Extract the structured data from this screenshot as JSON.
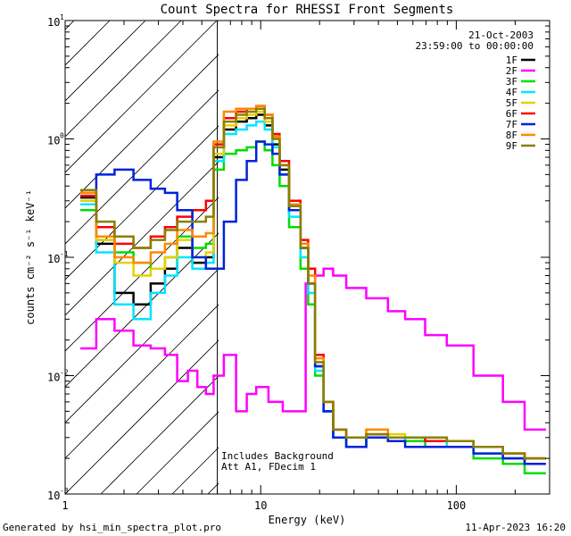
{
  "footer": {
    "left": "Generated by hsi_min_spectra_plot.pro",
    "right": "11-Apr-2023 16:20"
  },
  "chart_data": {
    "type": "line",
    "title": "Count Spectra for RHESSI Front Segments",
    "xlabel": "Energy (keV)",
    "ylabel": "counts cm⁻² s⁻¹ keV⁻¹",
    "xscale": "log",
    "yscale": "log",
    "xlim": [
      1,
      300
    ],
    "ylim": [
      0.001,
      10
    ],
    "x_tick_labels": [
      {
        "value": 1,
        "label": "1"
      },
      {
        "value": 10,
        "label": "10"
      },
      {
        "value": 100,
        "label": "100"
      }
    ],
    "y_tick_labels": [
      {
        "value": 10,
        "label": "10",
        "exp": "1"
      },
      {
        "value": 1,
        "label": "10",
        "exp": "0"
      },
      {
        "value": 0.1,
        "label": "10",
        "exp": "-1"
      },
      {
        "value": 0.01,
        "label": "10",
        "exp": "-2"
      },
      {
        "value": 0.001,
        "label": "10",
        "exp": "-3"
      }
    ],
    "date": "21-Oct-2003",
    "time_range": "23:59:00 to 00:00:00",
    "shaded_region_below_keV": 6,
    "annotations": [
      "Includes Background",
      "Att A1, FDecim 1"
    ],
    "legend_position": "top-right",
    "series": [
      {
        "name": "1F",
        "color": "#000000",
        "x": [
          1.3,
          1.6,
          2.0,
          2.5,
          3.0,
          3.5,
          4.0,
          5.0,
          5.5,
          6.0,
          7.0,
          8.0,
          9.0,
          10.0,
          11.0,
          12.0,
          13.0,
          15.0,
          17.0,
          18.0,
          20.0,
          22.0,
          25.0,
          30.0,
          40.0,
          50.0,
          60.0,
          80.0,
          100.0,
          150.0,
          200.0,
          250.0
        ],
        "y": [
          0.32,
          0.13,
          0.05,
          0.04,
          0.06,
          0.08,
          0.12,
          0.09,
          0.1,
          0.7,
          1.2,
          1.4,
          1.5,
          1.6,
          1.3,
          0.9,
          0.55,
          0.25,
          0.12,
          0.06,
          0.012,
          0.005,
          0.003,
          0.0025,
          0.003,
          0.003,
          0.003,
          0.003,
          0.0028,
          0.0025,
          0.002,
          0.0018
        ]
      },
      {
        "name": "2F",
        "color": "#ff00ff",
        "x": [
          1.3,
          1.6,
          2.0,
          2.5,
          3.0,
          3.5,
          4.0,
          4.5,
          5.0,
          5.5,
          6.0,
          7.0,
          8.0,
          9.0,
          10.0,
          12.0,
          14.0,
          16.0,
          18.0,
          20.0,
          22.0,
          25.0,
          30.0,
          40.0,
          50.0,
          60.0,
          80.0,
          100.0,
          150.0,
          200.0,
          250.0
        ],
        "y": [
          0.017,
          0.03,
          0.024,
          0.018,
          0.017,
          0.015,
          0.009,
          0.011,
          0.008,
          0.007,
          0.01,
          0.015,
          0.005,
          0.007,
          0.008,
          0.006,
          0.005,
          0.005,
          0.06,
          0.07,
          0.08,
          0.07,
          0.055,
          0.045,
          0.035,
          0.03,
          0.022,
          0.018,
          0.01,
          0.006,
          0.0035
        ]
      },
      {
        "name": "3F",
        "color": "#00dd00",
        "x": [
          1.3,
          1.6,
          2.0,
          2.5,
          3.0,
          3.5,
          4.0,
          5.0,
          5.5,
          6.0,
          7.0,
          8.0,
          9.0,
          10.0,
          11.0,
          12.0,
          13.0,
          15.0,
          17.0,
          18.0,
          20.0,
          22.0,
          25.0,
          30.0,
          40.0,
          50.0,
          60.0,
          80.0,
          100.0,
          150.0,
          200.0,
          250.0
        ],
        "y": [
          0.25,
          0.14,
          0.11,
          0.09,
          0.08,
          0.1,
          0.15,
          0.12,
          0.13,
          0.55,
          0.75,
          0.8,
          0.85,
          0.95,
          0.8,
          0.6,
          0.4,
          0.18,
          0.08,
          0.04,
          0.01,
          0.005,
          0.003,
          0.0025,
          0.003,
          0.003,
          0.0028,
          0.0025,
          0.0025,
          0.002,
          0.0018,
          0.0015
        ]
      },
      {
        "name": "4F",
        "color": "#00e5ff",
        "x": [
          1.3,
          1.6,
          2.0,
          2.5,
          3.0,
          3.5,
          4.0,
          5.0,
          5.5,
          6.0,
          7.0,
          8.0,
          9.0,
          10.0,
          11.0,
          12.0,
          13.0,
          15.0,
          17.0,
          18.0,
          20.0,
          22.0,
          25.0,
          30.0,
          40.0,
          50.0,
          60.0,
          80.0,
          100.0,
          150.0,
          200.0,
          250.0
        ],
        "y": [
          0.28,
          0.11,
          0.04,
          0.03,
          0.05,
          0.07,
          0.1,
          0.08,
          0.09,
          0.65,
          1.1,
          1.2,
          1.3,
          1.4,
          1.2,
          0.85,
          0.5,
          0.22,
          0.1,
          0.05,
          0.011,
          0.005,
          0.003,
          0.0025,
          0.003,
          0.0028,
          0.003,
          0.0028,
          0.0025,
          0.0022,
          0.002,
          0.0018
        ]
      },
      {
        "name": "5F",
        "color": "#e6d000",
        "x": [
          1.3,
          1.6,
          2.0,
          2.5,
          3.0,
          3.5,
          4.0,
          5.0,
          5.5,
          6.0,
          7.0,
          8.0,
          9.0,
          10.0,
          11.0,
          12.0,
          13.0,
          15.0,
          17.0,
          18.0,
          20.0,
          22.0,
          25.0,
          30.0,
          40.0,
          50.0,
          60.0,
          80.0,
          100.0,
          150.0,
          200.0,
          250.0
        ],
        "y": [
          0.3,
          0.14,
          0.09,
          0.07,
          0.08,
          0.1,
          0.14,
          0.1,
          0.11,
          0.75,
          1.3,
          1.5,
          1.6,
          1.7,
          1.4,
          1.0,
          0.6,
          0.28,
          0.13,
          0.07,
          0.013,
          0.006,
          0.0035,
          0.003,
          0.0035,
          0.0032,
          0.003,
          0.003,
          0.0028,
          0.0025,
          0.0022,
          0.002
        ]
      },
      {
        "name": "6F",
        "color": "#ff0000",
        "x": [
          1.3,
          1.6,
          2.0,
          2.5,
          3.0,
          3.5,
          4.0,
          5.0,
          5.5,
          6.0,
          7.0,
          8.0,
          9.0,
          10.0,
          11.0,
          12.0,
          13.0,
          15.0,
          17.0,
          18.0,
          20.0,
          22.0,
          25.0,
          30.0,
          40.0,
          50.0,
          60.0,
          80.0,
          100.0,
          150.0,
          200.0,
          250.0
        ],
        "y": [
          0.33,
          0.18,
          0.13,
          0.12,
          0.15,
          0.18,
          0.22,
          0.25,
          0.3,
          0.9,
          1.5,
          1.7,
          1.8,
          1.9,
          1.6,
          1.1,
          0.65,
          0.3,
          0.14,
          0.08,
          0.015,
          0.006,
          0.0035,
          0.003,
          0.0032,
          0.003,
          0.003,
          0.0028,
          0.0028,
          0.0025,
          0.0022,
          0.002
        ]
      },
      {
        "name": "7F",
        "color": "#0022dd",
        "x": [
          1.3,
          1.6,
          2.0,
          2.5,
          3.0,
          3.5,
          4.0,
          5.0,
          5.5,
          6.0,
          7.0,
          8.0,
          9.0,
          10.0,
          11.0,
          12.0,
          13.0,
          15.0,
          17.0,
          18.0,
          20.0,
          22.0,
          25.0,
          30.0,
          40.0,
          50.0,
          60.0,
          80.0,
          100.0,
          150.0,
          200.0,
          250.0
        ],
        "y": [
          0.35,
          0.5,
          0.55,
          0.45,
          0.38,
          0.35,
          0.25,
          0.1,
          0.08,
          0.08,
          0.2,
          0.45,
          0.65,
          0.95,
          0.9,
          0.75,
          0.5,
          0.25,
          0.12,
          0.06,
          0.012,
          0.005,
          0.003,
          0.0025,
          0.003,
          0.0028,
          0.0025,
          0.0025,
          0.0025,
          0.0022,
          0.002,
          0.0018
        ]
      },
      {
        "name": "8F",
        "color": "#ff8800",
        "x": [
          1.3,
          1.6,
          2.0,
          2.5,
          3.0,
          3.5,
          4.0,
          5.0,
          5.5,
          6.0,
          7.0,
          8.0,
          9.0,
          10.0,
          11.0,
          12.0,
          13.0,
          15.0,
          17.0,
          18.0,
          20.0,
          22.0,
          25.0,
          30.0,
          40.0,
          50.0,
          60.0,
          80.0,
          100.0,
          150.0,
          200.0,
          250.0
        ],
        "y": [
          0.35,
          0.15,
          0.1,
          0.09,
          0.11,
          0.13,
          0.17,
          0.15,
          0.16,
          0.95,
          1.7,
          1.8,
          1.8,
          1.9,
          1.6,
          1.05,
          0.6,
          0.28,
          0.13,
          0.07,
          0.014,
          0.006,
          0.0035,
          0.003,
          0.0035,
          0.003,
          0.003,
          0.003,
          0.0028,
          0.0025,
          0.0022,
          0.002
        ]
      },
      {
        "name": "9F",
        "color": "#888000",
        "x": [
          1.3,
          1.6,
          2.0,
          2.5,
          3.0,
          3.5,
          4.0,
          5.0,
          5.5,
          6.0,
          7.0,
          8.0,
          9.0,
          10.0,
          11.0,
          12.0,
          13.0,
          15.0,
          17.0,
          18.0,
          20.0,
          22.0,
          25.0,
          30.0,
          40.0,
          50.0,
          60.0,
          80.0,
          100.0,
          150.0,
          200.0,
          250.0
        ],
        "y": [
          0.37,
          0.2,
          0.15,
          0.12,
          0.14,
          0.17,
          0.2,
          0.2,
          0.22,
          0.85,
          1.4,
          1.6,
          1.7,
          1.8,
          1.5,
          1.0,
          0.6,
          0.27,
          0.12,
          0.06,
          0.013,
          0.006,
          0.0035,
          0.003,
          0.0032,
          0.003,
          0.003,
          0.003,
          0.0028,
          0.0025,
          0.0022,
          0.002
        ]
      }
    ]
  }
}
